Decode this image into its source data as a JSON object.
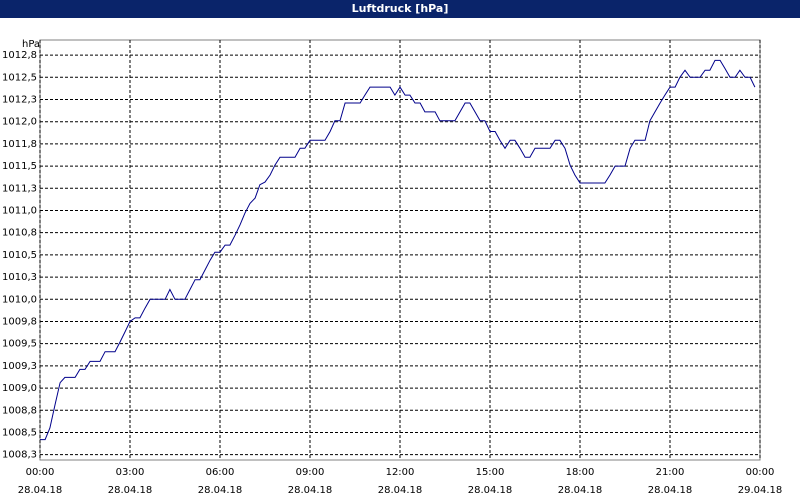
{
  "chart_data": {
    "type": "line",
    "title": "Luftdruck [hPa]",
    "y_unit": "hPa",
    "color": "#00008b",
    "grid": true,
    "xlim": [
      0,
      24
    ],
    "ylim": [
      1008.19,
      1012.92
    ],
    "xticks": [
      {
        "value": 0,
        "label": "00:00",
        "date": "28.04.18"
      },
      {
        "value": 3,
        "label": "03:00",
        "date": "28.04.18"
      },
      {
        "value": 6,
        "label": "06:00",
        "date": "28.04.18"
      },
      {
        "value": 9,
        "label": "09:00",
        "date": "28.04.18"
      },
      {
        "value": 12,
        "label": "12:00",
        "date": "28.04.18"
      },
      {
        "value": 15,
        "label": "15:00",
        "date": "28.04.18"
      },
      {
        "value": 18,
        "label": "18:00",
        "date": "28.04.18"
      },
      {
        "value": 21,
        "label": "21:00",
        "date": "28.04.18"
      },
      {
        "value": 24,
        "label": "00:00",
        "date": "29.04.18"
      }
    ],
    "yticks": [
      {
        "value": 1008.25,
        "label": "1008,3"
      },
      {
        "value": 1008.5,
        "label": "1008,5"
      },
      {
        "value": 1008.75,
        "label": "1008,8"
      },
      {
        "value": 1009.0,
        "label": "1009,0"
      },
      {
        "value": 1009.25,
        "label": "1009,3"
      },
      {
        "value": 1009.5,
        "label": "1009,5"
      },
      {
        "value": 1009.75,
        "label": "1009,8"
      },
      {
        "value": 1010.0,
        "label": "1010,0"
      },
      {
        "value": 1010.25,
        "label": "1010,3"
      },
      {
        "value": 1010.5,
        "label": "1010,5"
      },
      {
        "value": 1010.75,
        "label": "1010,8"
      },
      {
        "value": 1011.0,
        "label": "1011,0"
      },
      {
        "value": 1011.25,
        "label": "1011,3"
      },
      {
        "value": 1011.5,
        "label": "1011,5"
      },
      {
        "value": 1011.75,
        "label": "1011,8"
      },
      {
        "value": 1012.0,
        "label": "1012,0"
      },
      {
        "value": 1012.25,
        "label": "1012,3"
      },
      {
        "value": 1012.5,
        "label": "1012,5"
      },
      {
        "value": 1012.75,
        "label": "1012,8"
      }
    ],
    "x": [
      0,
      0.17,
      0.33,
      0.5,
      0.67,
      0.83,
      1.17,
      1.33,
      1.5,
      1.67,
      2,
      2.17,
      2.5,
      2.67,
      2.83,
      3,
      3.17,
      3.33,
      3.5,
      3.67,
      4.17,
      4.33,
      4.5,
      4.83,
      5,
      5.17,
      5.33,
      5.5,
      5.67,
      5.83,
      6,
      6.17,
      6.33,
      6.5,
      6.67,
      6.83,
      7,
      7.17,
      7.33,
      7.5,
      7.67,
      7.83,
      8,
      8.5,
      8.67,
      8.83,
      9,
      9.5,
      9.67,
      9.83,
      10,
      10.17,
      10.67,
      10.83,
      11,
      11.67,
      11.83,
      12,
      12.17,
      12.33,
      12.5,
      12.67,
      12.83,
      13.17,
      13.33,
      13.83,
      14,
      14.17,
      14.33,
      14.5,
      14.67,
      14.83,
      15,
      15.17,
      15.33,
      15.5,
      15.67,
      15.83,
      16,
      16.17,
      16.33,
      16.5,
      17,
      17.17,
      17.33,
      17.5,
      17.67,
      17.83,
      18,
      18.83,
      19,
      19.17,
      19.5,
      19.67,
      19.83,
      20.17,
      20.33,
      20.5,
      20.67,
      20.83,
      21,
      21.17,
      21.33,
      21.5,
      21.67,
      22,
      22.17,
      22.33,
      22.5,
      22.67,
      22.83,
      23,
      23.17,
      23.33,
      23.5,
      23.67,
      23.83
    ],
    "values": [
      1008.42,
      1008.42,
      1008.55,
      1008.81,
      1009.06,
      1009.12,
      1009.12,
      1009.21,
      1009.21,
      1009.3,
      1009.3,
      1009.41,
      1009.41,
      1009.52,
      1009.63,
      1009.75,
      1009.79,
      1009.79,
      1009.9,
      1010.0,
      1010.0,
      1010.11,
      1010.0,
      1010.0,
      1010.11,
      1010.22,
      1010.22,
      1010.33,
      1010.44,
      1010.53,
      1010.53,
      1010.61,
      1010.61,
      1010.72,
      1010.84,
      1010.97,
      1011.08,
      1011.14,
      1011.29,
      1011.32,
      1011.4,
      1011.51,
      1011.6,
      1011.6,
      1011.7,
      1011.7,
      1011.79,
      1011.79,
      1011.89,
      1012.01,
      1012.01,
      1012.21,
      1012.21,
      1012.3,
      1012.39,
      1012.39,
      1012.3,
      1012.39,
      1012.3,
      1012.3,
      1012.21,
      1012.21,
      1012.11,
      1012.11,
      1012.01,
      1012.01,
      1012.11,
      1012.21,
      1012.21,
      1012.11,
      1012.01,
      1012.01,
      1011.89,
      1011.89,
      1011.79,
      1011.7,
      1011.79,
      1011.79,
      1011.7,
      1011.6,
      1011.6,
      1011.7,
      1011.7,
      1011.79,
      1011.79,
      1011.7,
      1011.51,
      1011.4,
      1011.31,
      1011.31,
      1011.4,
      1011.5,
      1011.5,
      1011.7,
      1011.79,
      1011.79,
      1012.01,
      1012.11,
      1012.21,
      1012.3,
      1012.39,
      1012.39,
      1012.5,
      1012.58,
      1012.5,
      1012.5,
      1012.58,
      1012.58,
      1012.69,
      1012.69,
      1012.6,
      1012.5,
      1012.5,
      1012.58,
      1012.5,
      1012.5,
      1012.39
    ]
  }
}
